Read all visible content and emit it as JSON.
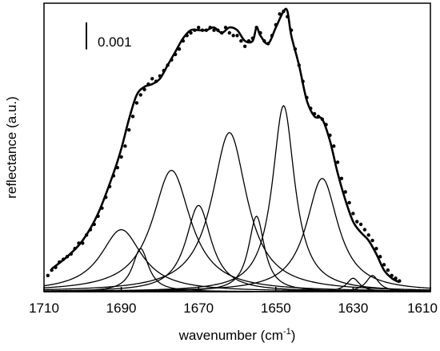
{
  "chart_data": {
    "type": "line",
    "xlabel": "wavenumber (cm",
    "xlabel_sup": "-1",
    "xlabel_end": ")",
    "ylabel": "reflectance (a.u.)",
    "x_reversed": true,
    "xlim": [
      1710,
      1610
    ],
    "ylim": [
      0,
      0.0107
    ],
    "xticks": [
      "1710",
      "1690",
      "1670",
      "1650",
      "1630",
      "1610"
    ],
    "scale_bar": {
      "label": "0.001",
      "value": 0.001
    },
    "fit_components": [
      {
        "center": 1690,
        "height": 0.0023,
        "width": 6.5
      },
      {
        "center": 1685,
        "height": 0.0016,
        "width": 2.5
      },
      {
        "center": 1677,
        "height": 0.0045,
        "width": 6.0
      },
      {
        "center": 1670,
        "height": 0.0032,
        "width": 4.0
      },
      {
        "center": 1662,
        "height": 0.0059,
        "width": 5.5
      },
      {
        "center": 1655,
        "height": 0.0028,
        "width": 2.5
      },
      {
        "center": 1648,
        "height": 0.0069,
        "width": 3.5
      },
      {
        "center": 1638,
        "height": 0.0042,
        "width": 5.0
      },
      {
        "center": 1630,
        "height": 0.0005,
        "width": 2.0
      },
      {
        "center": 1625,
        "height": 0.0006,
        "width": 2.0
      }
    ],
    "fit_curve": {
      "x": [
        1708,
        1704,
        1700,
        1696,
        1692,
        1690,
        1688,
        1686,
        1684,
        1682,
        1680,
        1678,
        1676,
        1674,
        1672,
        1670,
        1668,
        1666,
        1664,
        1662,
        1660,
        1658,
        1656,
        1655,
        1654,
        1652,
        1650,
        1648,
        1647,
        1646,
        1644,
        1642,
        1640,
        1638,
        1636,
        1634,
        1632,
        1630,
        1628,
        1626,
        1624,
        1622,
        1620,
        1618
      ],
      "y": [
        0.00085,
        0.0013,
        0.0019,
        0.0029,
        0.0044,
        0.0053,
        0.0064,
        0.0073,
        0.0076,
        0.0077,
        0.0079,
        0.0084,
        0.0089,
        0.0094,
        0.0097,
        0.0097,
        0.0097,
        0.0098,
        0.0096,
        0.0098,
        0.0097,
        0.0093,
        0.0093,
        0.0098,
        0.0095,
        0.0092,
        0.0098,
        0.0104,
        0.0104,
        0.0095,
        0.0084,
        0.0071,
        0.0065,
        0.0064,
        0.0056,
        0.0044,
        0.0034,
        0.0026,
        0.0022,
        0.0019,
        0.0014,
        0.0008,
        0.0005,
        0.00035
      ]
    },
    "measured_points": {
      "x": [
        1709,
        1708,
        1707,
        1706,
        1705,
        1704,
        1703,
        1702,
        1701,
        1700,
        1699,
        1698,
        1697,
        1696,
        1695,
        1694,
        1693,
        1692,
        1691,
        1690,
        1689,
        1688,
        1687,
        1686,
        1685,
        1684,
        1683,
        1682,
        1681,
        1680,
        1679,
        1678,
        1677,
        1676,
        1675,
        1674,
        1673,
        1672,
        1671,
        1670,
        1669,
        1668,
        1667,
        1666,
        1665,
        1664,
        1663,
        1662,
        1661,
        1660,
        1659,
        1658,
        1657,
        1656,
        1655,
        1654,
        1653,
        1652,
        1651,
        1650,
        1649,
        1648,
        1647,
        1646,
        1645,
        1644,
        1643,
        1642,
        1641,
        1640,
        1639,
        1638,
        1637,
        1636,
        1635,
        1634,
        1633,
        1632,
        1631,
        1630,
        1629,
        1628,
        1627,
        1626,
        1625,
        1624,
        1623,
        1622,
        1621,
        1620,
        1619,
        1618
      ],
      "y": [
        0.0006,
        0.0008,
        0.0009,
        0.0011,
        0.0012,
        0.0013,
        0.0014,
        0.0016,
        0.0018,
        0.0018,
        0.0021,
        0.0023,
        0.0025,
        0.0028,
        0.0031,
        0.0035,
        0.0039,
        0.0043,
        0.0046,
        0.005,
        0.0054,
        0.006,
        0.0065,
        0.007,
        0.0073,
        0.0075,
        0.0077,
        0.0079,
        0.0078,
        0.008,
        0.0082,
        0.0084,
        0.0086,
        0.0088,
        0.009,
        0.0093,
        0.0095,
        0.0096,
        0.0097,
        0.0098,
        0.0097,
        0.0097,
        0.0098,
        0.0097,
        0.0097,
        0.0096,
        0.0098,
        0.0096,
        0.0095,
        0.0095,
        0.0093,
        0.0091,
        0.0093,
        0.0094,
        0.0098,
        0.0096,
        0.0093,
        0.0092,
        0.0095,
        0.0099,
        0.0103,
        0.0104,
        0.0102,
        0.0097,
        0.009,
        0.0084,
        0.0078,
        0.0072,
        0.0068,
        0.0066,
        0.0065,
        0.0064,
        0.0062,
        0.0058,
        0.0054,
        0.0048,
        0.0042,
        0.0037,
        0.0033,
        0.0029,
        0.0026,
        0.0025,
        0.0023,
        0.0021,
        0.0019,
        0.0016,
        0.0013,
        0.001,
        0.0008,
        0.0006,
        0.0005,
        0.0004
      ]
    }
  }
}
